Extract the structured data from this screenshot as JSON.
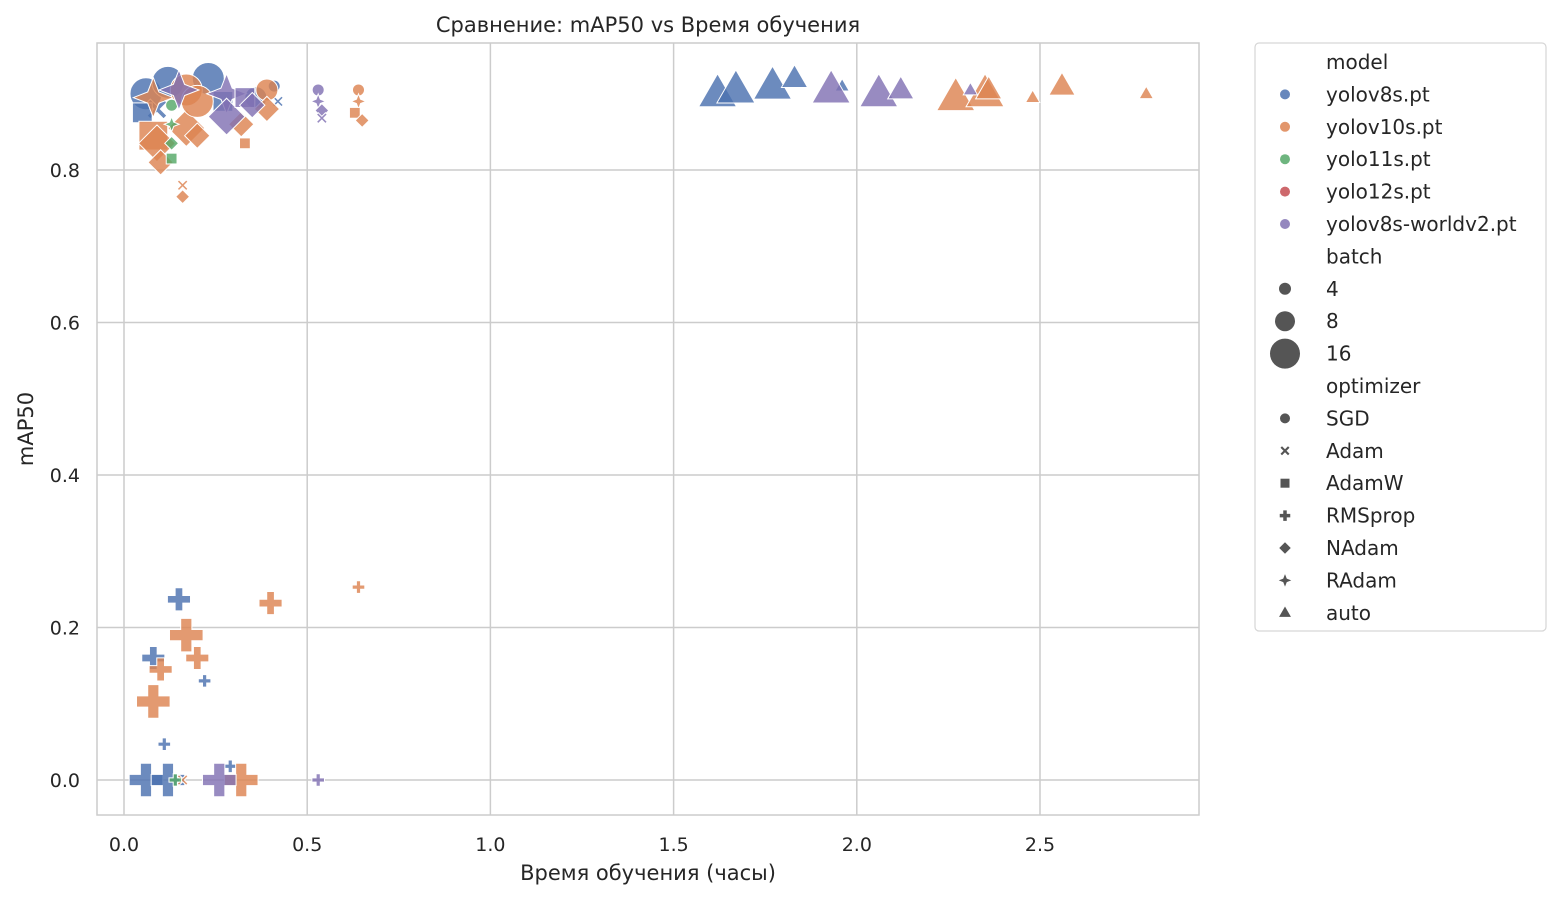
{
  "chart_data": {
    "type": "scatter",
    "title": "Сравнение: mAP50 vs Время обучения",
    "xlabel": "Время обучения (часы)",
    "ylabel": "mAP50",
    "xlim": [
      -0.07,
      2.93
    ],
    "ylim": [
      -0.046,
      0.967
    ],
    "xticks": [
      "0.0",
      "0.5",
      "1.0",
      "1.5",
      "2.0",
      "2.5"
    ],
    "yticks": [
      "0.0",
      "0.2",
      "0.4",
      "0.6",
      "0.8"
    ],
    "grid": true,
    "legend_position": "outside right, upper",
    "legend": {
      "model_title": "model",
      "models": [
        {
          "name": "yolov8s.pt",
          "color": "#4c72b0"
        },
        {
          "name": "yolov10s.pt",
          "color": "#dd8452"
        },
        {
          "name": "yolo11s.pt",
          "color": "#55a868"
        },
        {
          "name": "yolo12s.pt",
          "color": "#c44e52"
        },
        {
          "name": "yolov8s-worldv2.pt",
          "color": "#8172b3"
        }
      ],
      "batch_title": "batch",
      "batches": [
        {
          "label": "4",
          "size": 4
        },
        {
          "label": "8",
          "size": 8
        },
        {
          "label": "16",
          "size": 16
        }
      ],
      "optimizer_title": "optimizer",
      "optimizers": [
        {
          "label": "SGD",
          "marker": "circle"
        },
        {
          "label": "Adam",
          "marker": "x"
        },
        {
          "label": "AdamW",
          "marker": "square"
        },
        {
          "label": "RMSprop",
          "marker": "plus"
        },
        {
          "label": "NAdam",
          "marker": "diamond"
        },
        {
          "label": "RAdam",
          "marker": "star4"
        },
        {
          "label": "auto",
          "marker": "triangle"
        }
      ]
    },
    "series": [
      {
        "name": "yolov8s.pt",
        "color": "#4c72b0",
        "points": [
          {
            "x": 0.06,
            "y": 0.9,
            "batch": 16,
            "optimizer": "SGD"
          },
          {
            "x": 0.12,
            "y": 0.915,
            "batch": 16,
            "optimizer": "SGD"
          },
          {
            "x": 0.23,
            "y": 0.92,
            "batch": 16,
            "optimizer": "SGD"
          },
          {
            "x": 0.09,
            "y": 0.88,
            "batch": 8,
            "optimizer": "Adam"
          },
          {
            "x": 0.05,
            "y": 0.875,
            "batch": 8,
            "optimizer": "AdamW"
          },
          {
            "x": 0.27,
            "y": 0.89,
            "batch": 8,
            "optimizer": "AdamW"
          },
          {
            "x": 0.41,
            "y": 0.91,
            "batch": 4,
            "optimizer": "SGD"
          },
          {
            "x": 0.42,
            "y": 0.89,
            "batch": 4,
            "optimizer": "Adam"
          },
          {
            "x": 0.36,
            "y": 0.895,
            "batch": 8,
            "optimizer": "SGD"
          },
          {
            "x": 0.15,
            "y": 0.237,
            "batch": 8,
            "optimizer": "RMSprop"
          },
          {
            "x": 0.08,
            "y": 0.16,
            "batch": 8,
            "optimizer": "RMSprop"
          },
          {
            "x": 0.22,
            "y": 0.13,
            "batch": 4,
            "optimizer": "RMSprop"
          },
          {
            "x": 0.11,
            "y": 0.047,
            "batch": 4,
            "optimizer": "RMSprop"
          },
          {
            "x": 0.06,
            "y": 0.0,
            "batch": 16,
            "optimizer": "RMSprop"
          },
          {
            "x": 0.12,
            "y": 0.0,
            "batch": 16,
            "optimizer": "RMSprop"
          },
          {
            "x": 0.29,
            "y": 0.018,
            "batch": 4,
            "optimizer": "RMSprop"
          },
          {
            "x": 1.62,
            "y": 0.9,
            "batch": 16,
            "optimizer": "auto"
          },
          {
            "x": 1.67,
            "y": 0.905,
            "batch": 16,
            "optimizer": "auto"
          },
          {
            "x": 1.77,
            "y": 0.91,
            "batch": 16,
            "optimizer": "auto"
          },
          {
            "x": 1.83,
            "y": 0.92,
            "batch": 8,
            "optimizer": "auto"
          },
          {
            "x": 1.96,
            "y": 0.91,
            "batch": 4,
            "optimizer": "auto"
          }
        ]
      },
      {
        "name": "yolov10s.pt",
        "color": "#dd8452",
        "points": [
          {
            "x": 0.08,
            "y": 0.895,
            "batch": 16,
            "optimizer": "RAdam"
          },
          {
            "x": 0.17,
            "y": 0.905,
            "batch": 16,
            "optimizer": "SGD"
          },
          {
            "x": 0.08,
            "y": 0.845,
            "batch": 16,
            "optimizer": "AdamW"
          },
          {
            "x": 0.09,
            "y": 0.835,
            "batch": 16,
            "optimizer": "NAdam"
          },
          {
            "x": 0.17,
            "y": 0.855,
            "batch": 16,
            "optimizer": "NAdam"
          },
          {
            "x": 0.2,
            "y": 0.89,
            "batch": 16,
            "optimizer": "SGD"
          },
          {
            "x": 0.1,
            "y": 0.81,
            "batch": 8,
            "optimizer": "NAdam"
          },
          {
            "x": 0.2,
            "y": 0.845,
            "batch": 8,
            "optimizer": "NAdam"
          },
          {
            "x": 0.32,
            "y": 0.86,
            "batch": 8,
            "optimizer": "NAdam"
          },
          {
            "x": 0.33,
            "y": 0.835,
            "batch": 4,
            "optimizer": "AdamW"
          },
          {
            "x": 0.39,
            "y": 0.905,
            "batch": 8,
            "optimizer": "SGD"
          },
          {
            "x": 0.39,
            "y": 0.88,
            "batch": 8,
            "optimizer": "NAdam"
          },
          {
            "x": 0.16,
            "y": 0.78,
            "batch": 4,
            "optimizer": "Adam"
          },
          {
            "x": 0.16,
            "y": 0.765,
            "batch": 4,
            "optimizer": "NAdam"
          },
          {
            "x": 0.64,
            "y": 0.905,
            "batch": 4,
            "optimizer": "SGD"
          },
          {
            "x": 0.64,
            "y": 0.89,
            "batch": 4,
            "optimizer": "RAdam"
          },
          {
            "x": 0.63,
            "y": 0.875,
            "batch": 4,
            "optimizer": "AdamW"
          },
          {
            "x": 0.65,
            "y": 0.865,
            "batch": 4,
            "optimizer": "NAdam"
          },
          {
            "x": 0.17,
            "y": 0.19,
            "batch": 16,
            "optimizer": "RMSprop"
          },
          {
            "x": 0.4,
            "y": 0.232,
            "batch": 8,
            "optimizer": "RMSprop"
          },
          {
            "x": 0.2,
            "y": 0.16,
            "batch": 8,
            "optimizer": "RMSprop"
          },
          {
            "x": 0.1,
            "y": 0.145,
            "batch": 8,
            "optimizer": "RMSprop"
          },
          {
            "x": 0.08,
            "y": 0.103,
            "batch": 16,
            "optimizer": "RMSprop"
          },
          {
            "x": 0.64,
            "y": 0.253,
            "batch": 4,
            "optimizer": "RMSprop"
          },
          {
            "x": 0.32,
            "y": 0.0,
            "batch": 16,
            "optimizer": "RMSprop"
          },
          {
            "x": 0.16,
            "y": 0.0,
            "batch": 4,
            "optimizer": "Adam"
          },
          {
            "x": 2.27,
            "y": 0.895,
            "batch": 16,
            "optimizer": "auto"
          },
          {
            "x": 2.35,
            "y": 0.9,
            "batch": 16,
            "optimizer": "auto"
          },
          {
            "x": 2.36,
            "y": 0.905,
            "batch": 8,
            "optimizer": "auto"
          },
          {
            "x": 2.48,
            "y": 0.895,
            "batch": 4,
            "optimizer": "auto"
          },
          {
            "x": 2.56,
            "y": 0.91,
            "batch": 8,
            "optimizer": "auto"
          },
          {
            "x": 2.79,
            "y": 0.9,
            "batch": 4,
            "optimizer": "auto"
          }
        ]
      },
      {
        "name": "yolo11s.pt",
        "color": "#55a868",
        "points": [
          {
            "x": 0.13,
            "y": 0.885,
            "batch": 4,
            "optimizer": "SGD"
          },
          {
            "x": 0.13,
            "y": 0.86,
            "batch": 4,
            "optimizer": "RAdam"
          },
          {
            "x": 0.13,
            "y": 0.835,
            "batch": 4,
            "optimizer": "NAdam"
          },
          {
            "x": 0.13,
            "y": 0.815,
            "batch": 4,
            "optimizer": "AdamW"
          },
          {
            "x": 0.14,
            "y": 0.0,
            "batch": 4,
            "optimizer": "RMSprop"
          }
        ]
      },
      {
        "name": "yolo12s.pt",
        "color": "#c44e52",
        "points": []
      },
      {
        "name": "yolov8s-worldv2.pt",
        "color": "#8172b3",
        "points": [
          {
            "x": 0.15,
            "y": 0.905,
            "batch": 16,
            "optimizer": "RAdam"
          },
          {
            "x": 0.28,
            "y": 0.9,
            "batch": 16,
            "optimizer": "RAdam"
          },
          {
            "x": 0.28,
            "y": 0.87,
            "batch": 16,
            "optimizer": "NAdam"
          },
          {
            "x": 0.33,
            "y": 0.895,
            "batch": 8,
            "optimizer": "AdamW"
          },
          {
            "x": 0.35,
            "y": 0.885,
            "batch": 8,
            "optimizer": "NAdam"
          },
          {
            "x": 0.53,
            "y": 0.905,
            "batch": 4,
            "optimizer": "SGD"
          },
          {
            "x": 0.53,
            "y": 0.89,
            "batch": 4,
            "optimizer": "RAdam"
          },
          {
            "x": 0.54,
            "y": 0.878,
            "batch": 4,
            "optimizer": "NAdam"
          },
          {
            "x": 0.54,
            "y": 0.868,
            "batch": 4,
            "optimizer": "Adam"
          },
          {
            "x": 0.26,
            "y": 0.0,
            "batch": 16,
            "optimizer": "RMSprop"
          },
          {
            "x": 0.53,
            "y": 0.0,
            "batch": 4,
            "optimizer": "RMSprop"
          },
          {
            "x": 1.93,
            "y": 0.905,
            "batch": 16,
            "optimizer": "auto"
          },
          {
            "x": 2.06,
            "y": 0.9,
            "batch": 16,
            "optimizer": "auto"
          },
          {
            "x": 2.12,
            "y": 0.905,
            "batch": 8,
            "optimizer": "auto"
          },
          {
            "x": 2.31,
            "y": 0.905,
            "batch": 4,
            "optimizer": "auto"
          }
        ]
      }
    ]
  }
}
